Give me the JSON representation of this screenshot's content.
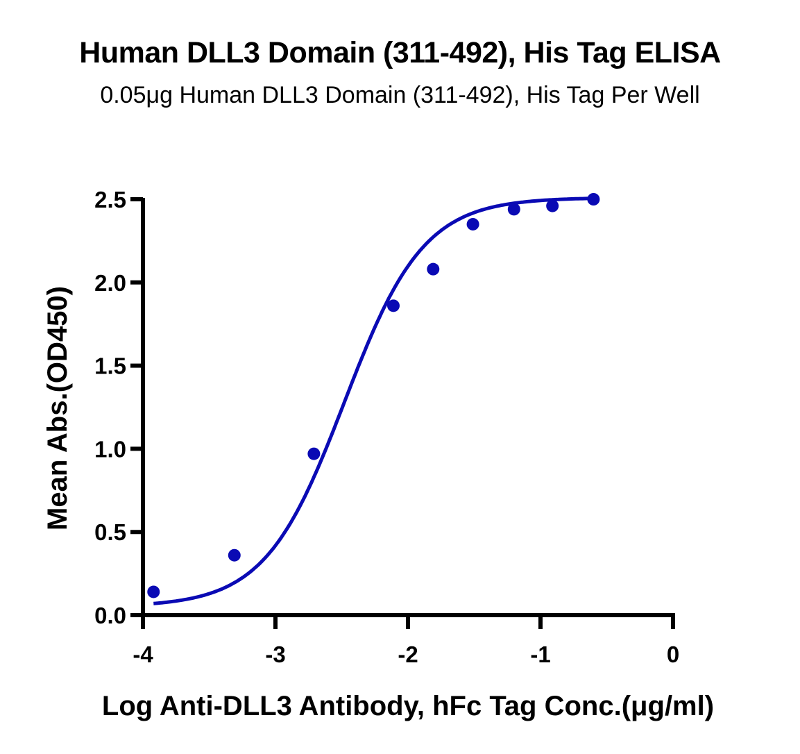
{
  "chart_data": {
    "type": "scatter",
    "title": "Human DLL3 Domain (311-492), His Tag ELISA",
    "subtitle": "0.05μg Human DLL3 Domain (311-492), His Tag Per Well",
    "xlabel": "Log Anti-DLL3 Antibody, hFc Tag Conc.(μg/ml)",
    "ylabel": "Mean Abs.(OD450)",
    "xlim": [
      -4,
      0
    ],
    "ylim": [
      0,
      2.5
    ],
    "x_ticks": [
      "-4",
      "-3",
      "-2",
      "-1",
      "0"
    ],
    "y_ticks": [
      "0.0",
      "0.5",
      "1.0",
      "1.5",
      "2.0",
      "2.5"
    ],
    "grid": false,
    "legend": null,
    "series": [
      {
        "name": "Anti-DLL3 Antibody, hFc Tag",
        "color": "#0a0ab4",
        "fit": "4PL sigmoidal curve",
        "x": [
          -3.92,
          -3.31,
          -2.71,
          -2.11,
          -1.81,
          -1.51,
          -1.2,
          -0.91,
          -0.6
        ],
        "y": [
          0.14,
          0.36,
          0.97,
          1.86,
          2.08,
          2.35,
          2.44,
          2.46,
          2.5
        ]
      }
    ]
  }
}
